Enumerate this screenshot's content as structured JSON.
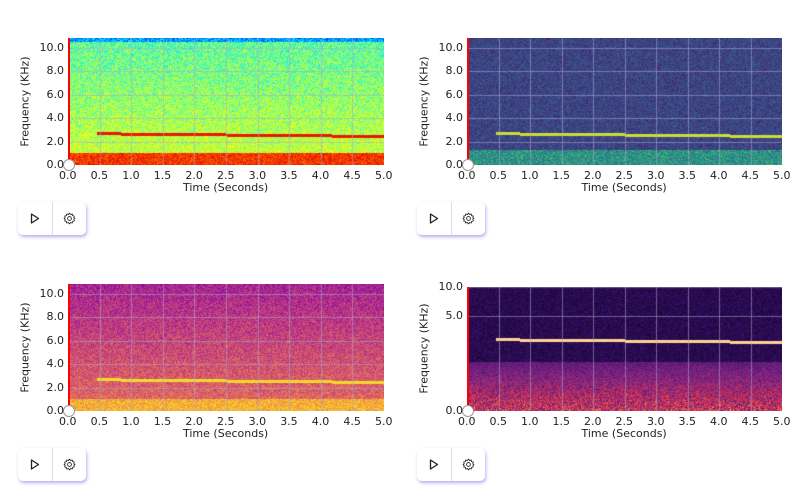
{
  "spectrograms": [
    {
      "colormap": "jet",
      "y_label": "Frequency (KHz)",
      "x_label": "Time (Seconds)",
      "y_ticks": [
        "0.0",
        "2.0",
        "4.0",
        "6.0",
        "8.0",
        "10.0"
      ],
      "x_ticks": [
        "0.0",
        "0.5",
        "1.0",
        "1.5",
        "2.0",
        "2.5",
        "3.0",
        "3.5",
        "4.0",
        "4.5",
        "5.0"
      ],
      "play_icon": "play-icon",
      "settings_icon": "gear-icon"
    },
    {
      "colormap": "viridis",
      "y_label": "Frequency (KHz)",
      "x_label": "Time (Seconds)",
      "y_ticks": [
        "0.0",
        "2.0",
        "4.0",
        "6.0",
        "8.0",
        "10.0"
      ],
      "x_ticks": [
        "0.0",
        "0.5",
        "1.0",
        "1.5",
        "2.0",
        "2.5",
        "3.0",
        "3.5",
        "4.0",
        "4.5",
        "5.0"
      ],
      "play_icon": "play-icon",
      "settings_icon": "gear-icon"
    },
    {
      "colormap": "plasma",
      "y_label": "Frequency (KHz)",
      "x_label": "Time (Seconds)",
      "y_ticks": [
        "0.0",
        "2.0",
        "4.0",
        "6.0",
        "8.0",
        "10.0"
      ],
      "x_ticks": [
        "0.0",
        "0.5",
        "1.0",
        "1.5",
        "2.0",
        "2.5",
        "3.0",
        "3.5",
        "4.0",
        "4.5",
        "5.0"
      ],
      "play_icon": "play-icon",
      "settings_icon": "gear-icon"
    },
    {
      "colormap": "magma",
      "y_label": "Frequency (KHz)",
      "x_label": "Time (Seconds)",
      "y_ticks": [
        "0.0",
        "5.0",
        "10.0"
      ],
      "x_ticks": [
        "0.0",
        "0.5",
        "1.0",
        "1.5",
        "2.0",
        "2.5",
        "3.0",
        "3.5",
        "4.0",
        "4.5",
        "5.0"
      ],
      "play_icon": "play-icon",
      "settings_icon": "gear-icon"
    }
  ],
  "colors": {
    "playhead": "#ff0000",
    "control_shadow": "#7a6ee6"
  }
}
